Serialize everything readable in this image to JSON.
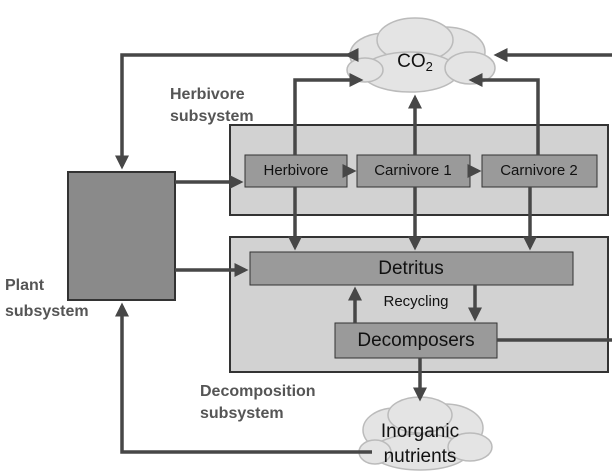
{
  "co2": {
    "text": "CO",
    "subscript": "2"
  },
  "herbivore_subsystem": {
    "label": [
      "Herbivore",
      "subsystem"
    ],
    "nodes": [
      "Herbivore",
      "Carnivore 1",
      "Carnivore 2"
    ]
  },
  "plant_subsystem": {
    "label": [
      "Plant",
      "subsystem"
    ]
  },
  "decomposition_subsystem": {
    "label": [
      "Decomposition",
      "subsystem"
    ],
    "detritus": "Detritus",
    "recycling": "Recycling",
    "decomposers": "Decomposers"
  },
  "inorganic_nutrients": [
    "Inorganic",
    "nutrients"
  ]
}
